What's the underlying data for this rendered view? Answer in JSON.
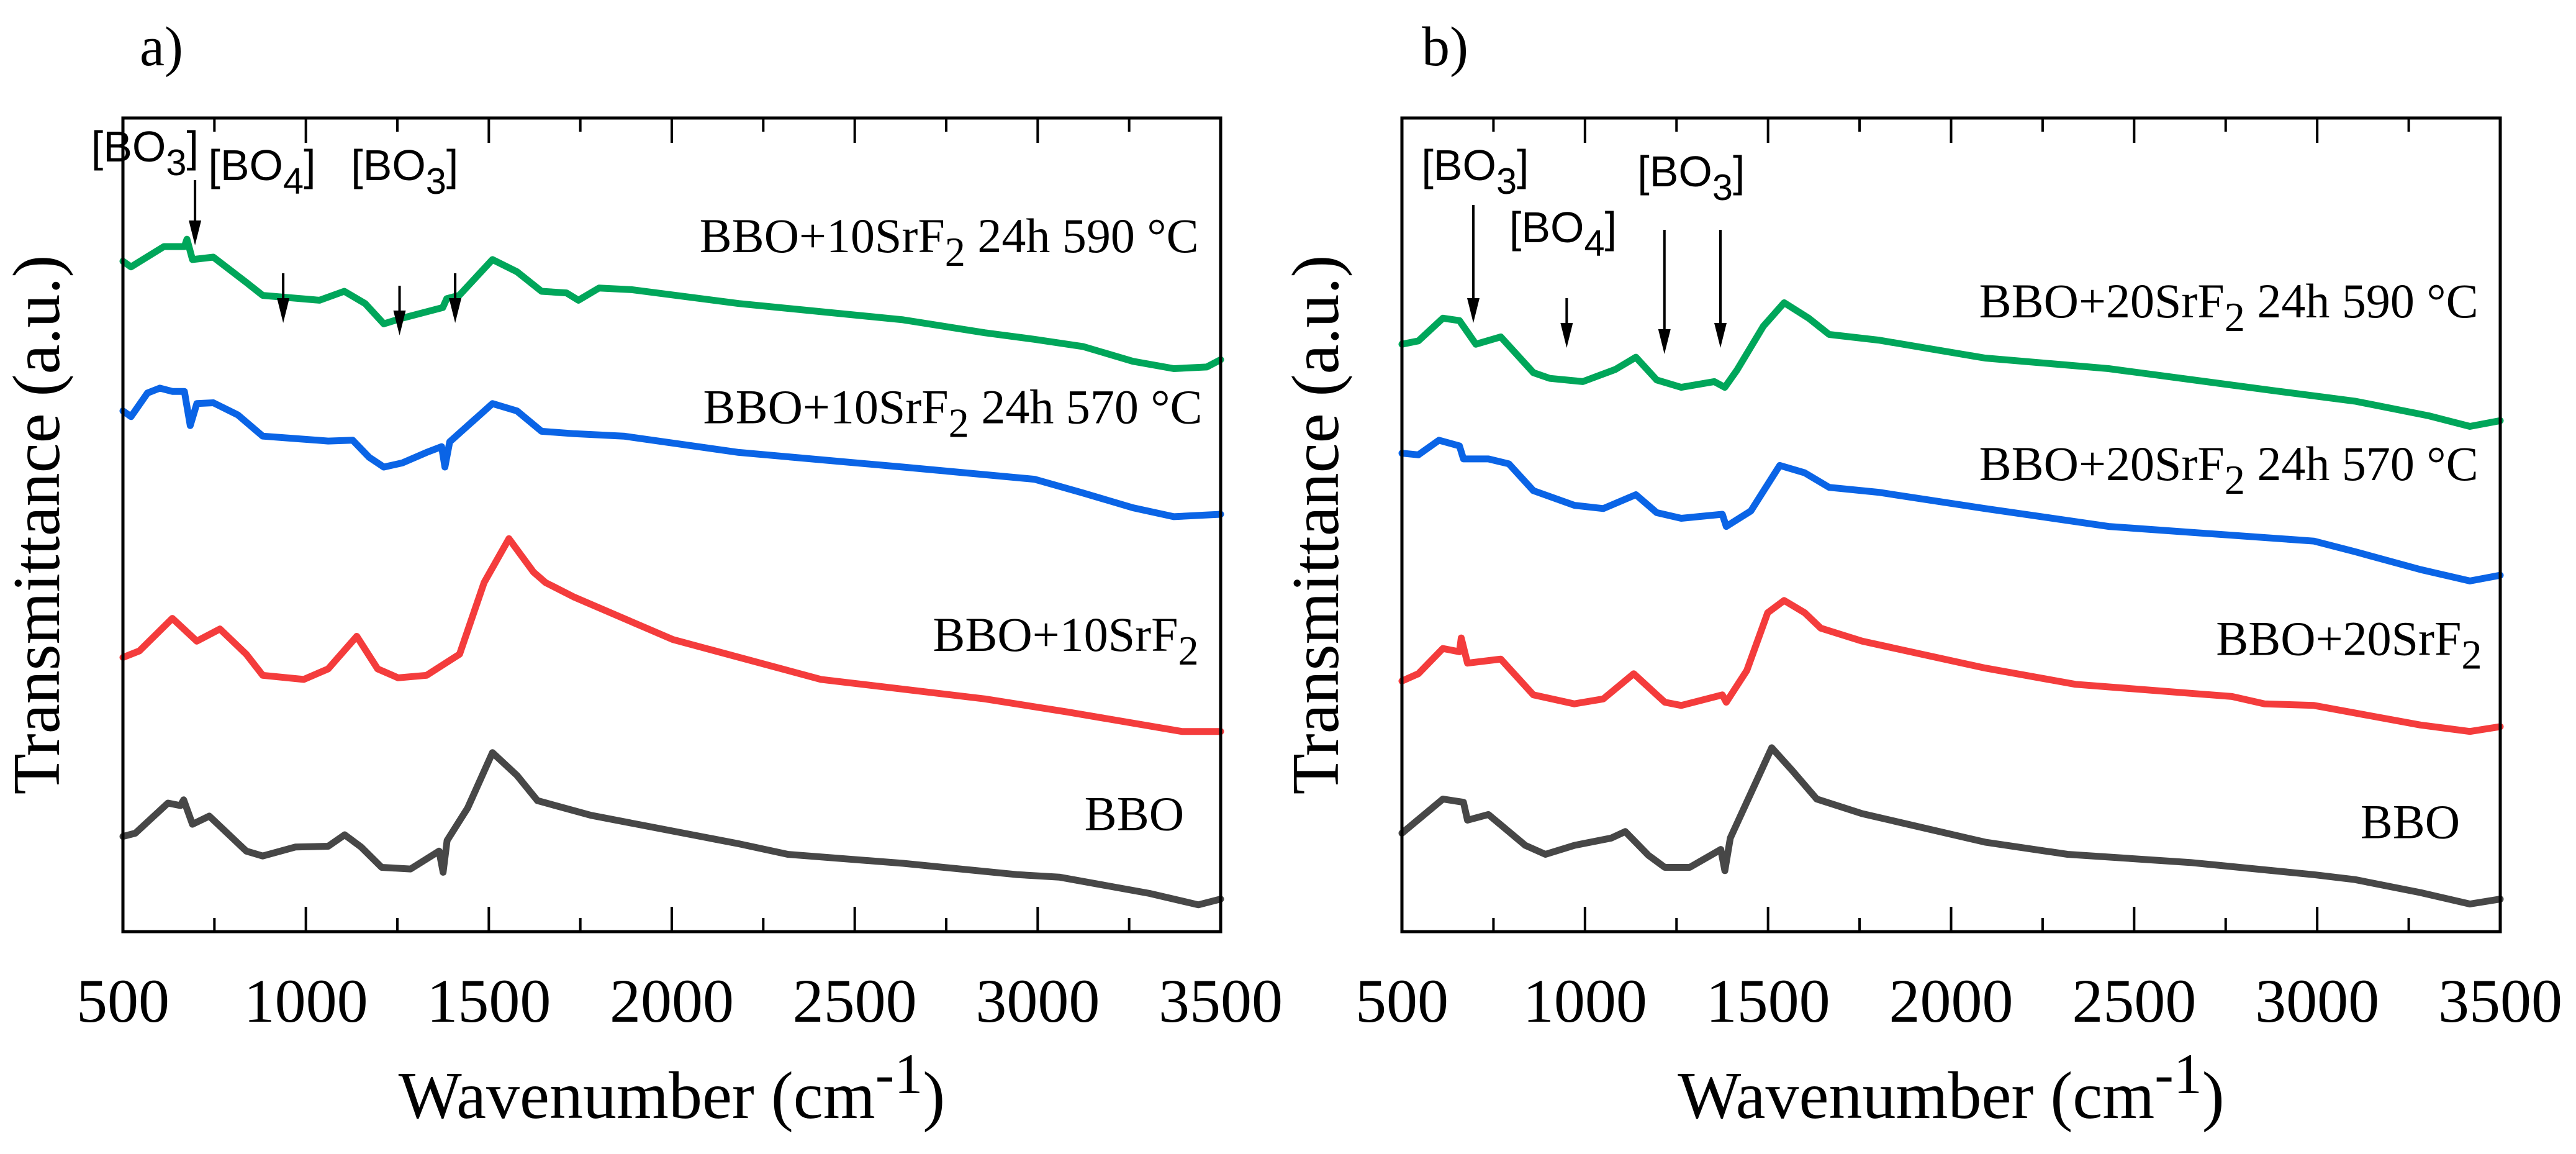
{
  "chart_data": [
    {
      "type": "line",
      "panel_label": "a)",
      "xlabel": {
        "main": "Wavenumber (cm",
        "sup": "-1",
        "end": ")"
      },
      "ylabel": "Transmittance (a.u.)",
      "xlim": [
        500,
        3500
      ],
      "ylim": [
        0,
        100
      ],
      "xticks": [
        500,
        1000,
        1500,
        2000,
        2500,
        3000,
        3500
      ],
      "grid": false,
      "annotations": [
        {
          "text": {
            "main": "[BO",
            "sub": "3",
            "end": "]"
          },
          "arrows_at": [
            697
          ]
        },
        {
          "text": {
            "main": "[BO",
            "sub": "4",
            "end": "]"
          },
          "arrows_at": [
            938
          ]
        },
        {
          "text": {
            "main": "[BO",
            "sub": "3",
            "end": "]"
          },
          "arrows_at": [
            1256,
            1408
          ]
        }
      ],
      "series": [
        {
          "name": {
            "main": "BBO+10SrF",
            "sub": "2",
            "end": " 24h 590 °C"
          },
          "color": "#00a65a",
          "x": [
            500,
            522,
            612,
            668,
            675,
            690,
            747,
            837,
            882,
            1037,
            1105,
            1162,
            1213,
            1263,
            1374,
            1385,
            1419,
            1510,
            1577,
            1644,
            1712,
            1745,
            1801,
            1891,
            2183,
            2632,
            2856,
            2991,
            3125,
            3260,
            3372,
            3462,
            3500
          ],
          "y": [
            82.4,
            81.7,
            84.2,
            84.2,
            85.1,
            82.6,
            82.9,
            79.8,
            78.2,
            77.6,
            78.7,
            77.2,
            74.7,
            75.4,
            76.7,
            77.8,
            78.2,
            82.6,
            81.1,
            78.7,
            78.5,
            77.6,
            79.1,
            78.9,
            77.2,
            75.2,
            73.6,
            72.8,
            71.9,
            70.1,
            69.2,
            69.4,
            70.3
          ]
        },
        {
          "name": {
            "main": "BBO+10SrF",
            "sub": "2",
            "end": " 24h 570 °C"
          },
          "color": "#0a64e6",
          "x": [
            500,
            522,
            567,
            601,
            635,
            668,
            684,
            702,
            747,
            814,
            882,
            971,
            1061,
            1128,
            1173,
            1213,
            1263,
            1330,
            1371,
            1380,
            1393,
            1510,
            1577,
            1644,
            1734,
            1869,
            2183,
            2632,
            2991,
            3125,
            3260,
            3372,
            3500
          ],
          "y": [
            64.0,
            63.3,
            66.2,
            66.8,
            66.4,
            66.4,
            62.2,
            64.9,
            65.0,
            63.5,
            60.9,
            60.6,
            60.3,
            60.4,
            58.3,
            57.1,
            57.6,
            58.9,
            59.6,
            57.1,
            60.2,
            64.9,
            64.0,
            61.5,
            61.2,
            60.9,
            58.9,
            57.1,
            55.6,
            53.9,
            52.1,
            51.0,
            51.3
          ]
        },
        {
          "name": {
            "main": "BBO+10SrF",
            "sub": "2",
            "end": ""
          },
          "color": "#f43c3c",
          "x": [
            500,
            545,
            635,
            702,
            765,
            837,
            882,
            994,
            1061,
            1139,
            1196,
            1252,
            1330,
            1420,
            1487,
            1555,
            1622,
            1655,
            1734,
            2003,
            2408,
            2856,
            3081,
            3394,
            3500
          ],
          "y": [
            33.7,
            34.5,
            38.5,
            35.7,
            37.2,
            34.1,
            31.5,
            31.0,
            32.3,
            36.3,
            32.3,
            31.2,
            31.5,
            34.1,
            42.9,
            48.3,
            44.2,
            42.9,
            41.1,
            35.9,
            31.0,
            28.6,
            27.0,
            24.6,
            24.6
          ]
        },
        {
          "name": {
            "main": "BBO",
            "sub": "",
            "end": ""
          },
          "color": "#474747",
          "x": [
            500,
            534,
            623,
            657,
            666,
            690,
            736,
            837,
            882,
            971,
            1061,
            1106,
            1151,
            1207,
            1286,
            1364,
            1375,
            1386,
            1442,
            1510,
            1577,
            1633,
            1779,
            2183,
            2317,
            2632,
            2946,
            3059,
            3305,
            3439,
            3500
          ],
          "y": [
            11.7,
            12.1,
            15.8,
            15.5,
            16.2,
            13.2,
            14.2,
            9.9,
            9.3,
            10.4,
            10.5,
            11.9,
            10.4,
            7.9,
            7.7,
            9.9,
            7.3,
            11.2,
            15.2,
            22.0,
            19.2,
            16.1,
            14.3,
            10.8,
            9.5,
            8.4,
            7.0,
            6.7,
            4.7,
            3.3,
            4.0
          ]
        }
      ]
    },
    {
      "type": "line",
      "panel_label": "b)",
      "xlabel": {
        "main": "Wavenumber (cm",
        "sup": "-1",
        "end": ")"
      },
      "ylabel": "Transmittance (a.u.)",
      "xlim": [
        500,
        3500
      ],
      "ylim": [
        0,
        100
      ],
      "xticks": [
        500,
        1000,
        1500,
        2000,
        2500,
        3000,
        3500
      ],
      "grid": false,
      "annotations": [
        {
          "text": {
            "main": "[BO",
            "sub": "3",
            "end": "]"
          },
          "arrows_at": [
            695
          ]
        },
        {
          "text": {
            "main": "[BO",
            "sub": "4",
            "end": "]"
          },
          "arrows_at": [
            950
          ]
        },
        {
          "text": {
            "main": "[BO",
            "sub": "3",
            "end": "]"
          },
          "arrows_at": [
            1217,
            1370
          ]
        }
      ],
      "series": [
        {
          "name": {
            "main": "BBO+20SrF",
            "sub": "2",
            "end": " 24h 590 °C"
          },
          "color": "#00a65a",
          "x": [
            500,
            545,
            612,
            657,
            702,
            770,
            859,
            904,
            994,
            1083,
            1139,
            1196,
            1263,
            1353,
            1382,
            1415,
            1487,
            1544,
            1611,
            1667,
            1802,
            2093,
            2430,
            2879,
            3103,
            3305,
            3417,
            3500
          ],
          "y": [
            72.2,
            72.6,
            75.4,
            75.1,
            72.2,
            73.1,
            68.7,
            68.0,
            67.6,
            69.1,
            70.6,
            67.8,
            66.9,
            67.6,
            66.9,
            69.0,
            74.4,
            77.3,
            75.4,
            73.4,
            72.7,
            70.5,
            69.2,
            66.5,
            65.2,
            63.4,
            62.1,
            62.8
          ]
        },
        {
          "name": {
            "main": "BBO+20SrF",
            "sub": "2",
            "end": " 24h 570 °C"
          },
          "color": "#0a64e6",
          "x": [
            500,
            545,
            601,
            657,
            668,
            736,
            792,
            859,
            971,
            1050,
            1139,
            1196,
            1263,
            1375,
            1386,
            1453,
            1532,
            1600,
            1667,
            1802,
            2093,
            2430,
            2991,
            3103,
            3282,
            3417,
            3500
          ],
          "y": [
            58.8,
            58.6,
            60.4,
            59.7,
            58.1,
            58.1,
            57.5,
            54.2,
            52.4,
            52.0,
            53.7,
            51.5,
            50.8,
            51.3,
            49.8,
            51.7,
            57.3,
            56.4,
            54.6,
            54.0,
            52.0,
            49.8,
            48.0,
            46.7,
            44.5,
            43.1,
            43.8
          ]
        },
        {
          "name": {
            "main": "BBO+20SrF",
            "sub": "2",
            "end": ""
          },
          "color": "#f43c3c",
          "x": [
            500,
            545,
            612,
            657,
            662,
            679,
            770,
            859,
            971,
            1050,
            1133,
            1218,
            1263,
            1375,
            1386,
            1442,
            1499,
            1544,
            1600,
            1644,
            1757,
            2093,
            2340,
            2767,
            2856,
            2991,
            3282,
            3417,
            3500
          ],
          "y": [
            30.8,
            31.7,
            34.8,
            34.4,
            36.1,
            33.0,
            33.5,
            29.1,
            28.0,
            28.6,
            31.7,
            28.2,
            27.8,
            29.1,
            28.2,
            32.1,
            39.2,
            40.7,
            39.2,
            37.3,
            35.7,
            32.4,
            30.4,
            28.9,
            28.0,
            27.8,
            25.4,
            24.6,
            25.2
          ]
        },
        {
          "name": {
            "main": "BBO",
            "sub": "",
            "end": ""
          },
          "color": "#474747",
          "x": [
            500,
            612,
            668,
            679,
            736,
            837,
            892,
            971,
            1072,
            1110,
            1173,
            1218,
            1286,
            1371,
            1382,
            1397,
            1510,
            1566,
            1633,
            1757,
            2093,
            2318,
            2654,
            2991,
            3103,
            3282,
            3417,
            3500
          ],
          "y": [
            12.1,
            16.3,
            15.9,
            13.7,
            14.4,
            10.6,
            9.5,
            10.6,
            11.5,
            12.3,
            9.4,
            7.9,
            7.9,
            10.1,
            7.5,
            11.5,
            22.6,
            19.8,
            16.3,
            14.5,
            11.0,
            9.5,
            8.5,
            7.0,
            6.4,
            4.8,
            3.4,
            4.0
          ]
        }
      ]
    }
  ]
}
